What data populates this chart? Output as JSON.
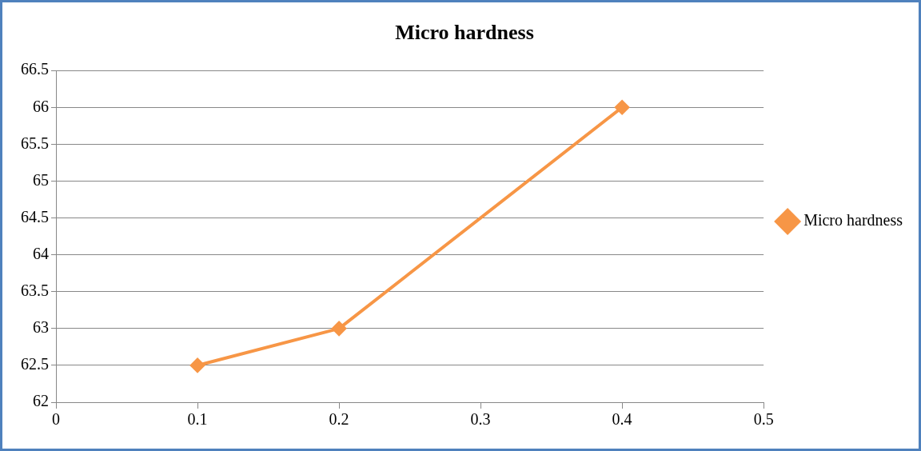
{
  "chart_data": {
    "type": "line",
    "title": "Micro hardness",
    "x": [
      0.1,
      0.2,
      0.4
    ],
    "series": [
      {
        "name": "Micro hardness",
        "color": "#f79646",
        "values": [
          62.5,
          63,
          66
        ]
      }
    ],
    "xlim": [
      0,
      0.5
    ],
    "xticks": [
      0,
      0.1,
      0.2,
      0.3,
      0.4,
      0.5
    ],
    "ylim": [
      62,
      66.5
    ],
    "yticks": [
      62,
      62.5,
      63,
      63.5,
      64,
      64.5,
      65,
      65.5,
      66,
      66.5
    ],
    "grid": "y",
    "legend": "right",
    "marker": "diamond",
    "line_style": "solid"
  }
}
